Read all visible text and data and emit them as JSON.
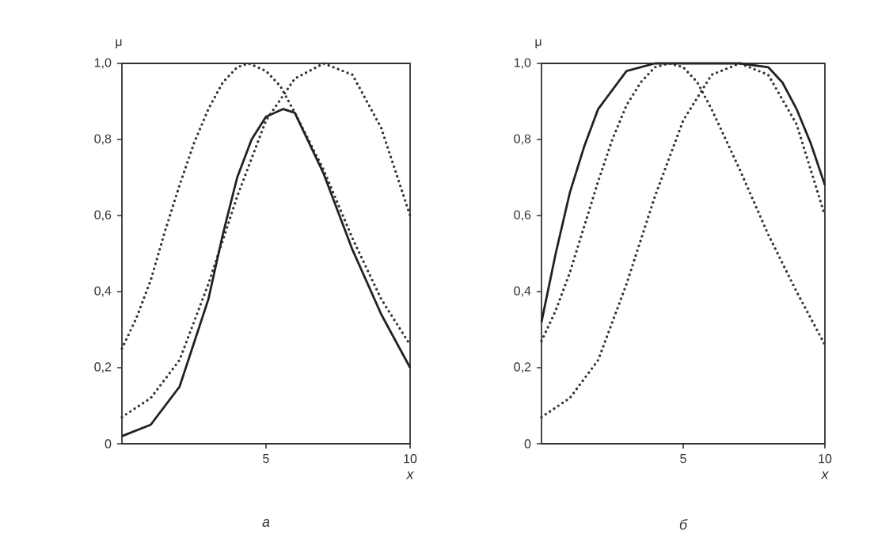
{
  "chart_data": [
    {
      "type": "line",
      "xlabel": "x",
      "ylabel": "μ",
      "annotations": [
        "а"
      ],
      "xlim": [
        0,
        10
      ],
      "ylim": [
        0,
        1
      ],
      "xticks": [
        5,
        10
      ],
      "yticks": [
        0,
        {
          "value": 0.2,
          "label": "0,2"
        },
        {
          "value": 0.4,
          "label": "0,4"
        },
        {
          "value": 0.6,
          "label": "0,6"
        },
        {
          "value": 0.8,
          "label": "0,8"
        },
        {
          "value": 1.0,
          "label": "1,0"
        }
      ],
      "series": [
        {
          "color": "#333333",
          "line_style": "dotted",
          "x": [
            0,
            0.5,
            1,
            1.5,
            2,
            2.5,
            3,
            3.5,
            4,
            4.4,
            5,
            5.5,
            6,
            7,
            8,
            9,
            10
          ],
          "values": [
            0.25,
            0.33,
            0.43,
            0.56,
            0.68,
            0.79,
            0.88,
            0.95,
            0.99,
            1.0,
            0.98,
            0.94,
            0.87,
            0.72,
            0.54,
            0.38,
            0.26
          ]
        },
        {
          "color": "#333333",
          "line_style": "dotted",
          "x": [
            0,
            1,
            2,
            3,
            4,
            5,
            6,
            7,
            8,
            9,
            10
          ],
          "values": [
            0.07,
            0.12,
            0.22,
            0.42,
            0.65,
            0.85,
            0.96,
            1.0,
            0.97,
            0.83,
            0.6
          ]
        },
        {
          "color": "#222222",
          "line_style": "solid",
          "x": [
            0,
            1,
            2,
            3,
            3.5,
            4,
            4.5,
            5,
            5.6,
            6,
            7,
            8,
            9,
            10
          ],
          "values": [
            0.02,
            0.05,
            0.15,
            0.38,
            0.55,
            0.7,
            0.8,
            0.86,
            0.88,
            0.87,
            0.71,
            0.51,
            0.34,
            0.2
          ]
        }
      ]
    },
    {
      "type": "line",
      "xlabel": "x",
      "ylabel": "μ",
      "annotations": [
        "б"
      ],
      "xlim": [
        0,
        10
      ],
      "ylim": [
        0,
        1
      ],
      "xticks": [
        5,
        10
      ],
      "yticks": [
        0,
        {
          "value": 0.2,
          "label": "0,2"
        },
        {
          "value": 0.4,
          "label": "0,4"
        },
        {
          "value": 0.6,
          "label": "0,6"
        },
        {
          "value": 0.8,
          "label": "0,8"
        },
        {
          "value": 1.0,
          "label": "1,0"
        }
      ],
      "series": [
        {
          "color": "#333333",
          "line_style": "dotted",
          "x": [
            0,
            0.5,
            1,
            1.5,
            2,
            2.5,
            3,
            3.5,
            4,
            4.5,
            5,
            5.5,
            6,
            7,
            8,
            9,
            10
          ],
          "values": [
            0.27,
            0.35,
            0.45,
            0.57,
            0.69,
            0.8,
            0.89,
            0.95,
            0.99,
            1.0,
            0.99,
            0.95,
            0.88,
            0.72,
            0.55,
            0.4,
            0.26
          ]
        },
        {
          "color": "#333333",
          "line_style": "dotted",
          "x": [
            0,
            1,
            2,
            3,
            4,
            5,
            6,
            7,
            8,
            9,
            10
          ],
          "values": [
            0.07,
            0.12,
            0.22,
            0.42,
            0.65,
            0.85,
            0.97,
            1.0,
            0.97,
            0.84,
            0.6
          ]
        },
        {
          "color": "#222222",
          "line_style": "solid",
          "x": [
            0,
            0.5,
            1,
            1.5,
            2,
            3,
            4,
            5,
            6,
            7,
            8,
            8.5,
            9,
            9.5,
            10
          ],
          "values": [
            0.32,
            0.5,
            0.66,
            0.78,
            0.88,
            0.98,
            1.0,
            1.0,
            1.0,
            1.0,
            0.99,
            0.95,
            0.88,
            0.79,
            0.68
          ]
        }
      ]
    }
  ]
}
